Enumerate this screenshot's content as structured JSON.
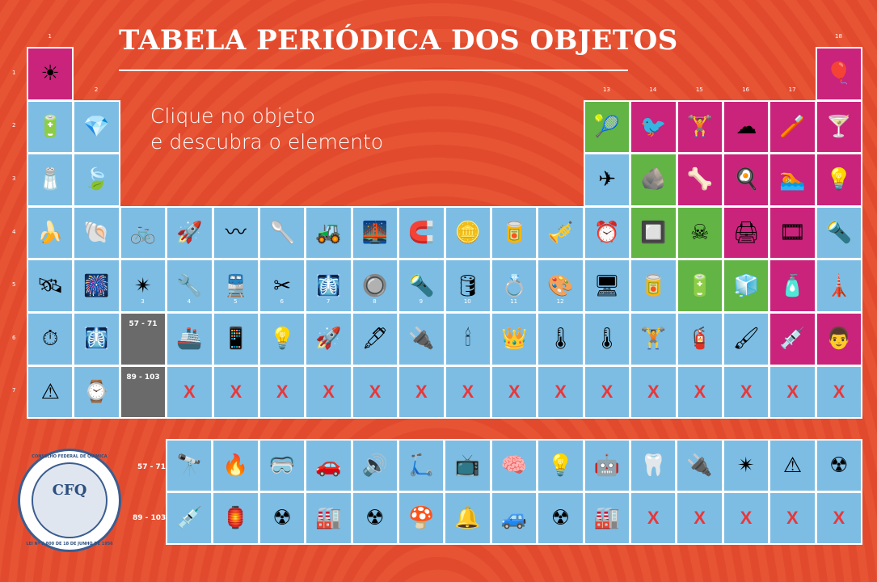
{
  "title": "TABELA PERIÓDICA DOS OBJETOS",
  "subtitle": [
    "Clique no objeto",
    "e descubra o elemento"
  ],
  "group_labels": [
    "1",
    "2",
    "3",
    "4",
    "5",
    "6",
    "7",
    "8",
    "9",
    "10",
    "11",
    "12",
    "13",
    "14",
    "15",
    "16",
    "17",
    "18"
  ],
  "period_labels": [
    "1",
    "2",
    "3",
    "4",
    "5",
    "6",
    "7"
  ],
  "placeholder_labels": {
    "lanthanides": "57 - 71",
    "actinides": "89 - 103"
  },
  "empty_mark": "X",
  "colors": {
    "blue": "#7dbde4",
    "magenta": "#c9237b",
    "green": "#62b445",
    "gray": "#6a6a6a",
    "x": "#e8373a",
    "background": "#e24a2e"
  },
  "seal": {
    "abbr": "CFQ",
    "top_text": "CONSELHO FEDERAL DE QUÍMICA",
    "bottom_text": "LEI Nº 2.800 DE 18 DE JUNHO DE 1956"
  },
  "main_table": [
    [
      {
        "icon": "sun-icon",
        "g": "☀",
        "c": "magenta"
      },
      null,
      null,
      null,
      null,
      null,
      null,
      null,
      null,
      null,
      null,
      null,
      null,
      null,
      null,
      null,
      null,
      {
        "icon": "balloons-icon",
        "g": "🎈",
        "c": "magenta"
      }
    ],
    [
      {
        "icon": "battery-icon",
        "g": "🔋",
        "c": "blue"
      },
      {
        "icon": "gem-icon",
        "g": "💎",
        "c": "blue"
      },
      null,
      null,
      null,
      null,
      null,
      null,
      null,
      null,
      null,
      null,
      {
        "icon": "tennis-racket-icon",
        "g": "🎾",
        "c": "green"
      },
      {
        "icon": "bird-icon",
        "g": "🐦",
        "c": "magenta"
      },
      {
        "icon": "weightlifter-icon",
        "g": "🏋",
        "c": "magenta"
      },
      {
        "icon": "cloud-icon",
        "g": "☁",
        "c": "magenta"
      },
      {
        "icon": "toothbrush-icon",
        "g": "🪥",
        "c": "magenta"
      },
      {
        "icon": "neon-cocktail-icon",
        "g": "🍸",
        "c": "magenta"
      }
    ],
    [
      {
        "icon": "salt-shaker-icon",
        "g": "🧂",
        "c": "blue"
      },
      {
        "icon": "leaves-icon",
        "g": "🍃",
        "c": "blue"
      },
      null,
      null,
      null,
      null,
      null,
      null,
      null,
      null,
      null,
      null,
      {
        "icon": "airplane-icon",
        "g": "✈",
        "c": "blue"
      },
      {
        "icon": "rock-icon",
        "g": "🪨",
        "c": "green"
      },
      {
        "icon": "bone-joint-icon",
        "g": "🦴",
        "c": "magenta"
      },
      {
        "icon": "fried-egg-icon",
        "g": "🍳",
        "c": "magenta"
      },
      {
        "icon": "swimming-pool-icon",
        "g": "🏊",
        "c": "magenta"
      },
      {
        "icon": "light-bulb-icon",
        "g": "💡",
        "c": "magenta"
      }
    ],
    [
      {
        "icon": "bananas-icon",
        "g": "🍌",
        "c": "blue"
      },
      {
        "icon": "shell-icon",
        "g": "🐚",
        "c": "blue"
      },
      {
        "icon": "bicycle-icon",
        "g": "🚲",
        "c": "blue"
      },
      {
        "icon": "rocket-icon",
        "g": "🚀",
        "c": "blue"
      },
      {
        "icon": "coil-spring-icon",
        "g": "〰",
        "c": "blue"
      },
      {
        "icon": "spoon-icon",
        "g": "🥄",
        "c": "blue"
      },
      {
        "icon": "bulldozer-icon",
        "g": "🚜",
        "c": "blue"
      },
      {
        "icon": "bridge-icon",
        "g": "🌉",
        "c": "blue"
      },
      {
        "icon": "magnet-icon",
        "g": "🧲",
        "c": "blue"
      },
      {
        "icon": "coins-icon",
        "g": "🪙",
        "c": "blue"
      },
      {
        "icon": "copper-coil-icon",
        "g": "🥫",
        "c": "blue"
      },
      {
        "icon": "brass-trumpet-icon",
        "g": "🎺",
        "c": "blue"
      },
      {
        "icon": "digital-clock-icon",
        "g": "⏰",
        "c": "blue"
      },
      {
        "icon": "microchip-icon",
        "g": "🔲",
        "c": "green"
      },
      {
        "icon": "poison-bottle-icon",
        "g": "☠",
        "c": "green"
      },
      {
        "icon": "printer-icon",
        "g": "🖨",
        "c": "magenta"
      },
      {
        "icon": "film-roll-icon",
        "g": "🎞",
        "c": "magenta"
      },
      {
        "icon": "flashlight-icon",
        "g": "🔦",
        "c": "blue"
      }
    ],
    [
      {
        "icon": "satellite-icon",
        "g": "🛰",
        "c": "blue"
      },
      {
        "icon": "fireworks-icon",
        "g": "🎆",
        "c": "blue"
      },
      {
        "icon": "laser-icon",
        "g": "✴",
        "c": "blue"
      },
      {
        "icon": "pipe-icon",
        "g": "🔧",
        "c": "blue"
      },
      {
        "icon": "train-icon",
        "g": "🚆",
        "c": "blue"
      },
      {
        "icon": "scissors-icon",
        "g": "✂",
        "c": "blue"
      },
      {
        "icon": "mri-scanner-icon",
        "g": "🩻",
        "c": "blue"
      },
      {
        "icon": "light-switch-icon",
        "g": "🔘",
        "c": "blue"
      },
      {
        "icon": "spotlight-icon",
        "g": "🔦",
        "c": "blue"
      },
      {
        "icon": "oil-can-icon",
        "g": "🛢",
        "c": "blue"
      },
      {
        "icon": "rings-icon",
        "g": "💍",
        "c": "blue"
      },
      {
        "icon": "paint-palette-icon",
        "g": "🎨",
        "c": "blue"
      },
      {
        "icon": "monitor-icon",
        "g": "🖥",
        "c": "blue"
      },
      {
        "icon": "tin-can-icon",
        "g": "🥫",
        "c": "blue"
      },
      {
        "icon": "car-battery-icon",
        "g": "🔋",
        "c": "green"
      },
      {
        "icon": "refrigerator-icon",
        "g": "🧊",
        "c": "green"
      },
      {
        "icon": "sanitizer-bottle-icon",
        "g": "🧴",
        "c": "magenta"
      },
      {
        "icon": "lighthouse-icon",
        "g": "🗼",
        "c": "blue"
      }
    ],
    [
      {
        "icon": "atomic-clock-icon",
        "g": "⏱",
        "c": "blue"
      },
      {
        "icon": "x-ray-icon",
        "g": "🩻",
        "c": "blue"
      },
      {
        "placeholder": "lanthanides",
        "c": "gray"
      },
      {
        "icon": "submarine-icon",
        "g": "🚢",
        "c": "blue"
      },
      {
        "icon": "smartphone-icon",
        "g": "📱",
        "c": "blue"
      },
      {
        "icon": "light-bulb-filament-icon",
        "g": "💡",
        "c": "blue"
      },
      {
        "icon": "space-shuttle-icon",
        "g": "🚀",
        "c": "blue"
      },
      {
        "icon": "fountain-pen-icon",
        "g": "🖋",
        "c": "blue"
      },
      {
        "icon": "spark-plug-icon",
        "g": "🔌",
        "c": "blue"
      },
      {
        "icon": "lab-burner-icon",
        "g": "🕯",
        "c": "blue"
      },
      {
        "icon": "crown-icon",
        "g": "👑",
        "c": "blue"
      },
      {
        "icon": "thermometer-icon",
        "g": "🌡",
        "c": "blue"
      },
      {
        "icon": "thermometer-gauge-icon",
        "g": "🌡",
        "c": "blue"
      },
      {
        "icon": "dumbbell-icon",
        "g": "🏋",
        "c": "blue"
      },
      {
        "icon": "fire-extinguisher-icon",
        "g": "🧯",
        "c": "blue"
      },
      {
        "icon": "hand-brush-icon",
        "g": "🖌",
        "c": "blue"
      },
      {
        "icon": "syringe-icon",
        "g": "💉",
        "c": "magenta"
      },
      {
        "icon": "doctor-icon",
        "g": "👨",
        "c": "magenta"
      }
    ],
    [
      {
        "icon": "radiation-warning-icon",
        "g": "⚠",
        "c": "blue"
      },
      {
        "icon": "atomic-clock-device-icon",
        "g": "⌚",
        "c": "blue"
      },
      {
        "placeholder": "actinides",
        "c": "gray"
      },
      {
        "x": true,
        "c": "blue"
      },
      {
        "x": true,
        "c": "blue"
      },
      {
        "x": true,
        "c": "blue"
      },
      {
        "x": true,
        "c": "blue"
      },
      {
        "x": true,
        "c": "blue"
      },
      {
        "x": true,
        "c": "blue"
      },
      {
        "x": true,
        "c": "blue"
      },
      {
        "x": true,
        "c": "blue"
      },
      {
        "x": true,
        "c": "blue"
      },
      {
        "x": true,
        "c": "blue"
      },
      {
        "x": true,
        "c": "blue"
      },
      {
        "x": true,
        "c": "blue"
      },
      {
        "x": true,
        "c": "blue"
      },
      {
        "x": true,
        "c": "blue"
      },
      {
        "x": true,
        "c": "blue"
      }
    ]
  ],
  "f_block": [
    [
      {
        "icon": "telescope-icon",
        "g": "🔭",
        "c": "blue"
      },
      {
        "icon": "lighter-icon",
        "g": "🔥",
        "c": "blue"
      },
      {
        "icon": "welding-mask-icon",
        "g": "🥽",
        "c": "blue"
      },
      {
        "icon": "hybrid-car-icon",
        "g": "🚗",
        "c": "blue"
      },
      {
        "icon": "speaker-icon",
        "g": "🔊",
        "c": "blue"
      },
      {
        "icon": "scooter-icon",
        "g": "🛴",
        "c": "blue"
      },
      {
        "icon": "retro-tv-icon",
        "g": "📺",
        "c": "blue"
      },
      {
        "icon": "brain-scan-icon",
        "g": "🧠",
        "c": "blue"
      },
      {
        "icon": "fluorescent-lamp-icon",
        "g": "💡",
        "c": "blue"
      },
      {
        "icon": "industrial-robot-icon",
        "g": "🤖",
        "c": "blue"
      },
      {
        "icon": "dental-chair-icon",
        "g": "🦷",
        "c": "blue"
      },
      {
        "icon": "fiber-cable-icon",
        "g": "🔌",
        "c": "blue"
      },
      {
        "icon": "laser-beam-icon",
        "g": "✴",
        "c": "blue"
      },
      {
        "icon": "laser-warning-icon",
        "g": "⚠",
        "c": "blue"
      },
      {
        "icon": "radiation-symbol-icon",
        "g": "☢",
        "c": "blue"
      }
    ],
    [
      {
        "icon": "syringe-icon",
        "g": "💉",
        "c": "blue"
      },
      {
        "icon": "lantern-icon",
        "g": "🏮",
        "c": "blue"
      },
      {
        "icon": "radioactive-barrel-icon",
        "g": "☢",
        "c": "blue"
      },
      {
        "icon": "nuclear-plant-icon",
        "g": "🏭",
        "c": "blue"
      },
      {
        "icon": "radioactive-barrel-icon",
        "g": "☢",
        "c": "blue"
      },
      {
        "icon": "mushroom-cloud-icon",
        "g": "🍄",
        "c": "blue"
      },
      {
        "icon": "smoke-detector-icon",
        "g": "🔔",
        "c": "blue"
      },
      {
        "icon": "mars-rover-icon",
        "g": "🚙",
        "c": "blue"
      },
      {
        "icon": "radioactive-barrel-icon",
        "g": "☢",
        "c": "blue"
      },
      {
        "icon": "reactor-facility-icon",
        "g": "🏭",
        "c": "blue"
      },
      {
        "x": true,
        "c": "blue"
      },
      {
        "x": true,
        "c": "blue"
      },
      {
        "x": true,
        "c": "blue"
      },
      {
        "x": true,
        "c": "blue"
      },
      {
        "x": true,
        "c": "blue"
      }
    ]
  ]
}
